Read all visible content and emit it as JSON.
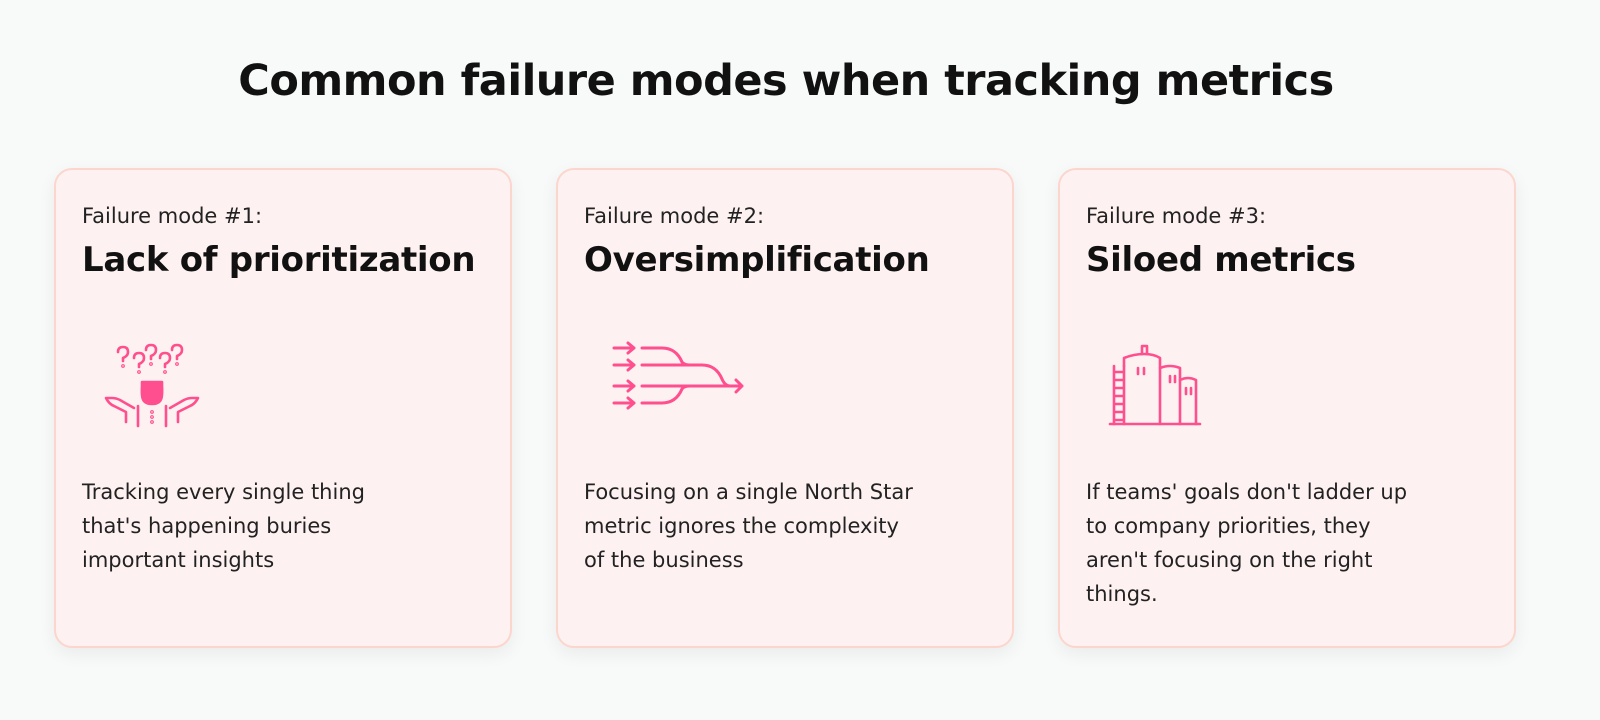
{
  "page": {
    "title": "Common failure modes when tracking metrics"
  },
  "colors": {
    "accent": "#ff4f8e",
    "card_bg": "#fdf2f1",
    "card_border": "#fcd6cd"
  },
  "cards": [
    {
      "label": "Failure mode #1:",
      "heading": "Lack of prioritization",
      "icon": "confused-person-icon",
      "body": "Tracking every single thing that's happening buries important insights"
    },
    {
      "label": "Failure mode #2:",
      "heading": "Oversimplification",
      "icon": "merging-arrows-icon",
      "body": "Focusing on a single North Star metric ignores the complexity of the business"
    },
    {
      "label": "Failure mode #3:",
      "heading": "Siloed metrics",
      "icon": "silos-icon",
      "body": "If teams' goals don't ladder up to company priorities, they aren't focusing on the right things."
    }
  ]
}
